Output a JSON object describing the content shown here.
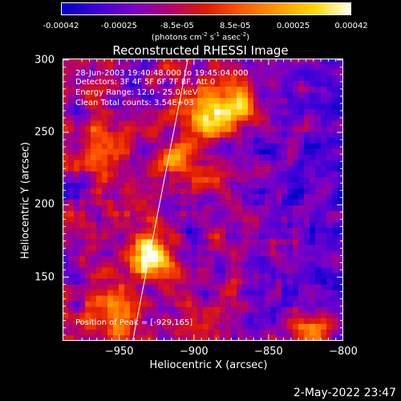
{
  "colorbar": {
    "ticks": [
      "-0.00042",
      "-0.00025",
      "-8.5e-05",
      "8.5e-05",
      "0.00025",
      "0.00042"
    ],
    "units_main": "(photons cm",
    "units_sup1": "-2",
    "units_mid1": " s",
    "units_sup2": "-1",
    "units_mid2": " asec",
    "units_sup3": "-2",
    "units_end": ")",
    "colors": [
      "#0000c8",
      "#3e00d8",
      "#7800c8",
      "#b40070",
      "#e01a00",
      "#ff5a00",
      "#ff9a00",
      "#ffd800",
      "#fffff0"
    ]
  },
  "chart_data": {
    "type": "heatmap",
    "title": "Reconstructed RHESSI Image",
    "xlabel": "Heliocentric X (arcsec)",
    "ylabel": "Heliocentric Y (arcsec)",
    "xlim": [
      -988,
      -800
    ],
    "ylim": [
      106,
      301
    ],
    "xticks": [
      -950,
      -900,
      -850,
      -800
    ],
    "xtick_labels": [
      "−950",
      "−900",
      "−850",
      "−800"
    ],
    "yticks": [
      150,
      200,
      250,
      300
    ],
    "ytick_labels": [
      "150",
      "200",
      "250",
      "300"
    ],
    "value_range": [
      -0.00042,
      0.00042
    ],
    "peak": {
      "x": -929,
      "y": 165
    },
    "hot_spots": [
      {
        "x": -929,
        "y": 165,
        "intensity": 1.0
      },
      {
        "x": -891,
        "y": 261,
        "intensity": 0.95
      },
      {
        "x": -872,
        "y": 270,
        "intensity": 0.7
      },
      {
        "x": -950,
        "y": 125,
        "intensity": 0.6
      },
      {
        "x": -820,
        "y": 112,
        "intensity": 0.75
      },
      {
        "x": -962,
        "y": 240,
        "intensity": 0.5
      },
      {
        "x": -910,
        "y": 230,
        "intensity": 0.55
      }
    ],
    "limb_line": {
      "from": {
        "x": -941,
        "y": 106
      },
      "to": {
        "x": -904,
        "y": 301
      }
    }
  },
  "info": {
    "time": "28-Jun-2003 19:40:48.000 to 19:45:04.000",
    "detectors": "Detectors: 3F 4F 5F 6F 7F 8F, Att 0",
    "energy": "Energy Range: 12.0 - 25.0 keV",
    "clean": "Clean     Total counts: 3.54E+03",
    "peak_label": "Position of Peak = [-929,165]"
  },
  "date_stamp": "2-May-2022 23:47"
}
